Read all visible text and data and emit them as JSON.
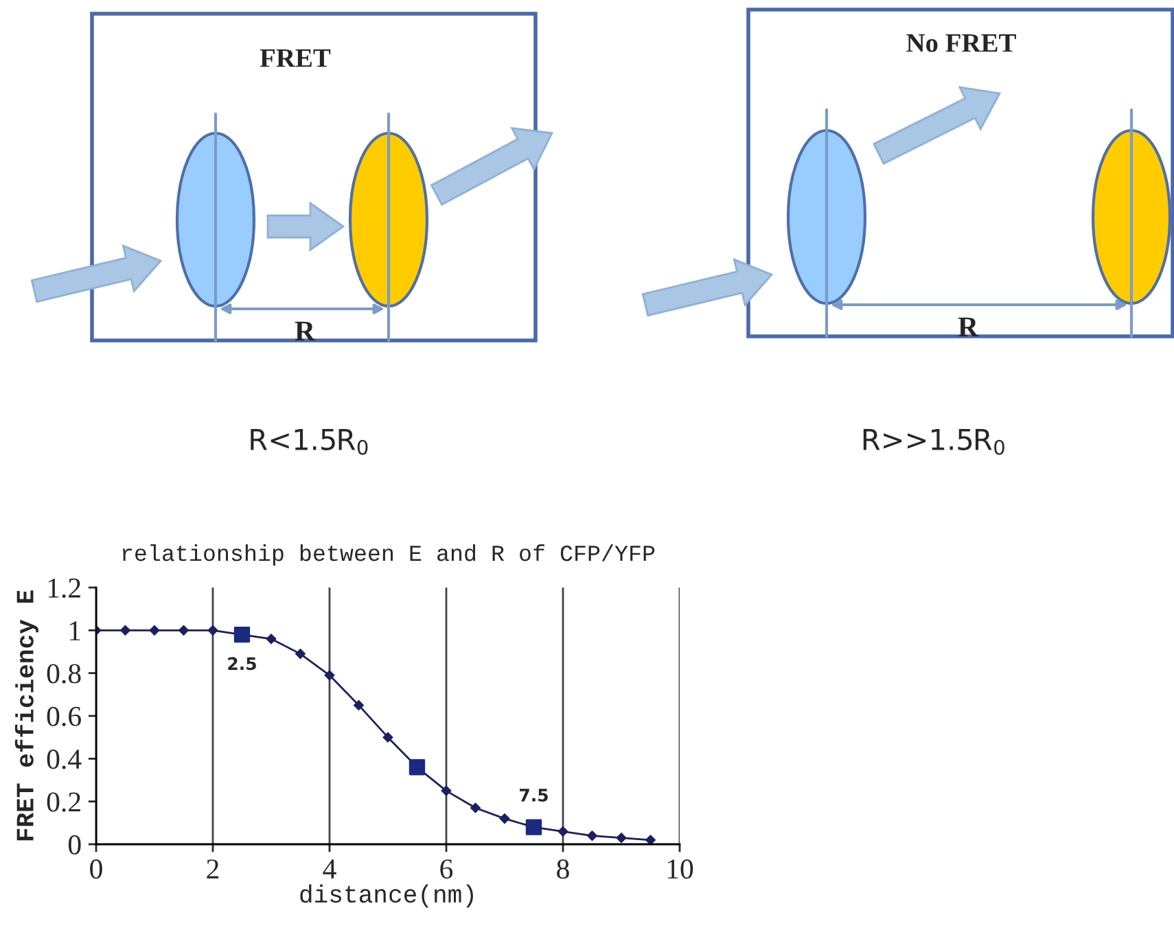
{
  "chart_data": {
    "type": "line",
    "title": "relationship between E and R of CFP/YFP",
    "xlabel": "distance(nm)",
    "ylabel": "FRET efficiency E",
    "x": [
      0,
      0.5,
      1,
      1.5,
      2,
      2.5,
      3,
      3.5,
      4,
      4.5,
      5,
      5.5,
      6,
      6.5,
      7,
      7.5,
      8,
      8.5,
      9,
      9.5
    ],
    "series": [
      {
        "color": "#1a2060",
        "marker": "diamond",
        "values": [
          1,
          1,
          1,
          1,
          1,
          0.98,
          0.96,
          0.89,
          0.79,
          0.65,
          0.5,
          0.36,
          0.25,
          0.17,
          0.12,
          0.08,
          0.06,
          0.04,
          0.03,
          0.02
        ]
      },
      {
        "type": "scatter",
        "color": "#1a2a80",
        "marker": "square",
        "x": [
          2.5,
          5.5,
          7.5
        ],
        "values": [
          0.98,
          0.36,
          0.08
        ]
      }
    ],
    "xlim": [
      0,
      10
    ],
    "xticks": [
      0,
      2,
      4,
      6,
      8,
      10
    ],
    "ylim": [
      0,
      1.2
    ],
    "yticks": [
      {
        "value": 0,
        "label": "0"
      },
      {
        "value": 0.2,
        "label": "0.2"
      },
      {
        "value": 0.4,
        "label": "0.4"
      },
      {
        "value": 0.6,
        "label": "0.6"
      },
      {
        "value": 0.8,
        "label": "0.8"
      },
      {
        "value": 1,
        "label": "1"
      },
      {
        "value": 1.2,
        "label": "1.2"
      }
    ],
    "grid": "x",
    "annotations": [
      {
        "text": "2.5",
        "x": 2.5,
        "y": 0.98
      },
      {
        "text": "7.5",
        "x": 7.5,
        "y": 0.08
      },
      "FRET",
      "No FRET",
      "R",
      "R",
      "R<1.5R$_{0}$",
      "R>>1.5R$_{0}$"
    ]
  }
}
